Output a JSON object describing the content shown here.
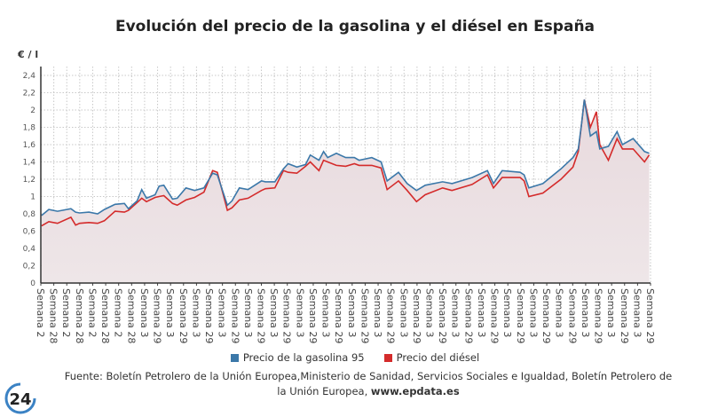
{
  "title": "Evolución del precio de la gasolina y el diésel en España",
  "source_text": "Fuente: Boletín Petrolero de la Unión Europea,Ministerio de Sanidad, Servicios Sociales e Igualdad, Boletín Petrolero de la Unión Europea,",
  "source_link": "www.epdata.es",
  "logo_text": "24",
  "colors": {
    "gasoline": "#3b78a9",
    "diesel": "#d42b2b",
    "fill": "#ece1e4"
  },
  "chart_data": {
    "type": "line",
    "title": "Evolución del precio de la gasolina y el diésel en España",
    "ylabel": "€ / l",
    "xlabel": "",
    "ylim": [
      0,
      2.45
    ],
    "yticks": [
      "0",
      "0,2",
      "0,4",
      "0,6",
      "0,8",
      "1",
      "1,2",
      "1,4",
      "1,6",
      "1,8",
      "2",
      "2,2",
      "2,4"
    ],
    "ytick_values": [
      0,
      0.2,
      0.4,
      0.6,
      0.8,
      1,
      1.2,
      1.4,
      1.6,
      1.8,
      2,
      2.2,
      2.4
    ],
    "xlim": [
      0,
      912
    ],
    "grid": true,
    "legend_position": "bottom",
    "xtick_labels": [
      "Semana 2",
      "Semana 28",
      "Semana 2",
      "Semana 28",
      "Semana 2",
      "Semana 28",
      "Semana 2",
      "Semana 28",
      "Semana 3",
      "Semana 29",
      "Semana 3",
      "Semana 29",
      "Semana 3",
      "Semana 29",
      "Semana 3",
      "Semana 29",
      "Semana 3",
      "Semana 29",
      "Semana 3",
      "Semana 29",
      "Semana 3",
      "Semana 29",
      "Semana 3",
      "Semana 29",
      "Semana 3",
      "Semana 29",
      "Semana 3",
      "Semana 29",
      "Semana 3",
      "Semana 29",
      "Semana 3",
      "Semana 29",
      "Semana 3",
      "Semana 29",
      "Semana 3",
      "Semana 29",
      "Semana 3",
      "Semana 29",
      "Semana 3",
      "Semana 29",
      "Semana 3",
      "Semana 29",
      "Semana 3",
      "Semana 29",
      "Semana 3",
      "Semana 29",
      "Semana 3",
      "Semana 29"
    ],
    "x": [
      1,
      12,
      25,
      45,
      52,
      58,
      72,
      85,
      95,
      111,
      125,
      131,
      144,
      151,
      158,
      171,
      177,
      184,
      197,
      204,
      217,
      230,
      244,
      257,
      264,
      279,
      286,
      297,
      310,
      330,
      336,
      350,
      363,
      370,
      383,
      396,
      403,
      416,
      423,
      429,
      442,
      456,
      469,
      476,
      495,
      509,
      518,
      535,
      548,
      562,
      575,
      601,
      615,
      645,
      668,
      677,
      690,
      717,
      723,
      730,
      751,
      778,
      796,
      804,
      809,
      813,
      822,
      831,
      836,
      849,
      862,
      870,
      886,
      903,
      910
    ],
    "series": [
      {
        "name": "Precio de la gasolina 95",
        "values": [
          0.78,
          0.85,
          0.83,
          0.86,
          0.82,
          0.81,
          0.82,
          0.8,
          0.85,
          0.91,
          0.92,
          0.86,
          0.95,
          1.08,
          0.98,
          1.02,
          1.12,
          1.13,
          0.97,
          0.98,
          1.1,
          1.07,
          1.1,
          1.27,
          1.25,
          0.9,
          0.95,
          1.1,
          1.08,
          1.18,
          1.17,
          1.17,
          1.32,
          1.38,
          1.34,
          1.37,
          1.48,
          1.42,
          1.52,
          1.45,
          1.5,
          1.45,
          1.45,
          1.42,
          1.45,
          1.4,
          1.18,
          1.28,
          1.15,
          1.07,
          1.13,
          1.17,
          1.15,
          1.22,
          1.3,
          1.15,
          1.3,
          1.28,
          1.25,
          1.1,
          1.15,
          1.32,
          1.45,
          1.55,
          1.85,
          2.12,
          1.7,
          1.75,
          1.55,
          1.58,
          1.75,
          1.6,
          1.67,
          1.52,
          1.5
        ]
      },
      {
        "name": "Precio del diésel",
        "values": [
          0.66,
          0.71,
          0.69,
          0.76,
          0.67,
          0.69,
          0.7,
          0.69,
          0.72,
          0.83,
          0.82,
          0.84,
          0.93,
          0.98,
          0.94,
          0.99,
          1.0,
          1.01,
          0.92,
          0.9,
          0.96,
          0.99,
          1.05,
          1.3,
          1.28,
          0.84,
          0.87,
          0.96,
          0.98,
          1.07,
          1.09,
          1.1,
          1.3,
          1.28,
          1.27,
          1.35,
          1.4,
          1.3,
          1.42,
          1.4,
          1.36,
          1.35,
          1.38,
          1.36,
          1.36,
          1.33,
          1.08,
          1.18,
          1.07,
          0.94,
          1.02,
          1.1,
          1.07,
          1.14,
          1.25,
          1.1,
          1.22,
          1.22,
          1.18,
          1.0,
          1.04,
          1.2,
          1.34,
          1.52,
          1.85,
          2.12,
          1.8,
          1.98,
          1.6,
          1.42,
          1.67,
          1.55,
          1.55,
          1.4,
          1.48
        ]
      }
    ]
  }
}
